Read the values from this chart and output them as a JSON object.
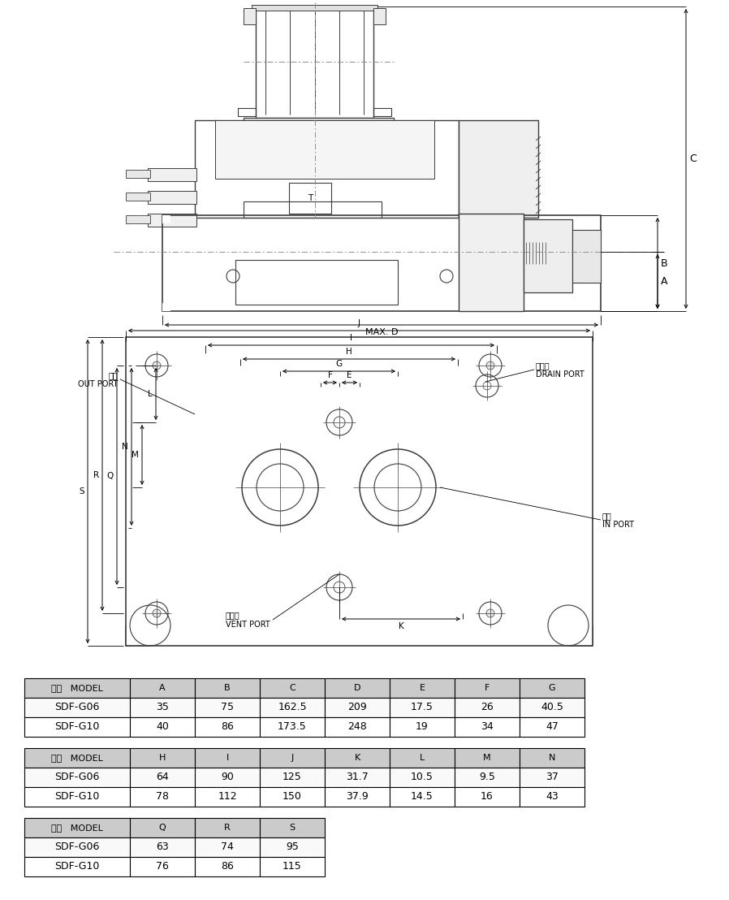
{
  "bg_color": "#ffffff",
  "lc": "#3c3c3c",
  "table1_headers": [
    "型式   MODEL",
    "A",
    "B",
    "C",
    "D",
    "E",
    "F",
    "G"
  ],
  "table1_rows": [
    [
      "SDF-G06",
      "35",
      "75",
      "162.5",
      "209",
      "17.5",
      "26",
      "40.5"
    ],
    [
      "SDF-G10",
      "40",
      "86",
      "173.5",
      "248",
      "19",
      "34",
      "47"
    ]
  ],
  "table2_headers": [
    "型式   MODEL",
    "H",
    "I",
    "J",
    "K",
    "L",
    "M",
    "N"
  ],
  "table2_rows": [
    [
      "SDF-G06",
      "64",
      "90",
      "125",
      "31.7",
      "10.5",
      "9.5",
      "37"
    ],
    [
      "SDF-G10",
      "78",
      "112",
      "150",
      "37.9",
      "14.5",
      "16",
      "43"
    ]
  ],
  "table3_headers": [
    "型式   MODEL",
    "Q",
    "R",
    "S"
  ],
  "table3_rows": [
    [
      "SDF-G06",
      "63",
      "74",
      "95"
    ],
    [
      "SDF-G10",
      "76",
      "86",
      "115"
    ]
  ],
  "header_bg": "#cbcbcb",
  "row_bg": "#f9f9f9"
}
